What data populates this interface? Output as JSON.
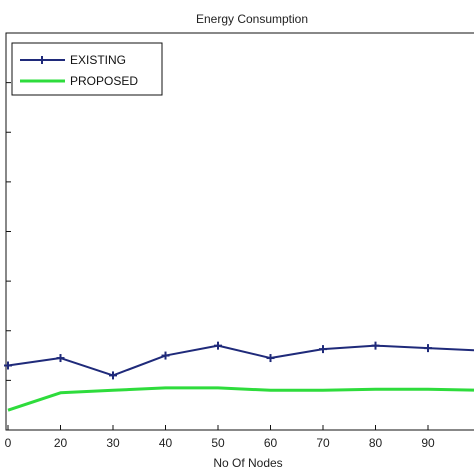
{
  "chart_data": {
    "type": "line",
    "title": "Energy Consumption",
    "xlabel": "No Of Nodes",
    "ylabel": "",
    "x": [
      10,
      20,
      30,
      40,
      50,
      60,
      70,
      80,
      90,
      100
    ],
    "x_ticks": [
      "0",
      "20",
      "30",
      "40",
      "50",
      "60",
      "70",
      "80",
      "90"
    ],
    "xlim": [
      10,
      100
    ],
    "ylim": [
      0,
      8
    ],
    "grid": false,
    "legend_position": "top-left",
    "series": [
      {
        "name": "EXISTING",
        "color": "#1f2a7a",
        "marker": "plus",
        "values": [
          1.3,
          1.45,
          1.1,
          1.5,
          1.7,
          1.45,
          1.63,
          1.7,
          1.65,
          1.6
        ]
      },
      {
        "name": "PROPOSED",
        "color": "#2edc3c",
        "marker": "none",
        "values": [
          0.4,
          0.75,
          0.8,
          0.85,
          0.85,
          0.8,
          0.8,
          0.82,
          0.82,
          0.8
        ]
      }
    ]
  }
}
